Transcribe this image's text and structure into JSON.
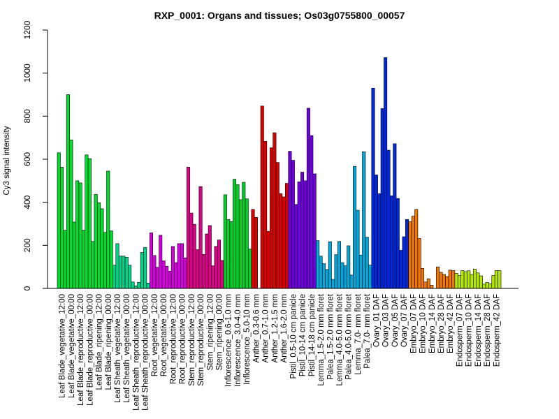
{
  "chart_data": {
    "type": "bar",
    "title": "RXP_0001: Organs and tissues; Os03g0755800_00057",
    "xlabel": "",
    "ylabel": "Cy3 signal intensity",
    "ylim": [
      0,
      1200
    ],
    "yticks": [
      0,
      200,
      400,
      600,
      800,
      1000,
      1200
    ],
    "grid": false,
    "legend": "none",
    "groups": [
      {
        "label": "Leaf Blade_vegetative_12:00",
        "color": "#00dd2f",
        "values": [
          630,
          563,
          270
        ]
      },
      {
        "label": "Leaf Blade_vegetative_00:00",
        "color": "#00dd2f",
        "values": [
          900,
          690,
          308
        ]
      },
      {
        "label": "Leaf Blade_reproductive_12:00",
        "color": "#00dd2f",
        "values": [
          500,
          490,
          270
        ]
      },
      {
        "label": "Leaf Blade_reproductive_00:00",
        "color": "#00dd2f",
        "values": [
          620,
          603,
          218
        ]
      },
      {
        "label": "Leaf Blade_ripening_12:00",
        "color": "#00dd2f",
        "values": [
          437,
          398,
          370
        ]
      },
      {
        "label": "Leaf Blade_ripening_00:00",
        "color": "#00dd2f",
        "values": [
          260,
          545,
          267
        ]
      },
      {
        "label": "Leaf Sheath_vegetative_12:00",
        "color": "#00d38c",
        "values": [
          108,
          208,
          150
        ]
      },
      {
        "label": "Leaf Sheath_vegetative_00:00",
        "color": "#00d38c",
        "values": [
          150,
          145,
          108
        ]
      },
      {
        "label": "Leaf Sheath_reproductive_12:00",
        "color": "#00d38c",
        "values": [
          30,
          12,
          28
        ]
      },
      {
        "label": "Leaf Sheath_reproductive_00:00",
        "color": "#00d38c",
        "values": [
          167,
          190,
          25
        ]
      },
      {
        "label": "Root_vegetative_12:00",
        "color": "#d600e0",
        "values": [
          258,
          153,
          98
        ]
      },
      {
        "label": "Root_vegetative_00:00",
        "color": "#d600e0",
        "values": [
          247,
          128,
          103
        ]
      },
      {
        "label": "Root_reproductive_12:00",
        "color": "#d600e0",
        "values": [
          80,
          195,
          120
        ]
      },
      {
        "label": "Root_reproductive_00:00",
        "color": "#d600e0",
        "values": [
          208,
          208,
          142
        ]
      },
      {
        "label": "Stem_reproductive_12:00",
        "color": "#de0088",
        "values": [
          563,
          350,
          298
        ]
      },
      {
        "label": "Stem_reproductive_00:00",
        "color": "#de0088",
        "values": [
          180,
          473,
          158
        ]
      },
      {
        "label": "Stem_ripening_12:00",
        "color": "#de0088",
        "values": [
          253,
          292,
          105
        ]
      },
      {
        "label": "Stem_ripening_00:00",
        "color": "#de0088",
        "values": [
          195,
          225,
          130
        ]
      },
      {
        "label": "Inflorescence_0.6-1.0 mm",
        "color": "#00d22a",
        "values": [
          435,
          320,
          310
        ]
      },
      {
        "label": "Inflorescence_3.0-4.0 mm",
        "color": "#00d22a",
        "values": [
          507,
          482,
          412
        ]
      },
      {
        "label": "Inflorescence_5.0-10 mm",
        "color": "#00d22a",
        "values": [
          493,
          416,
          183
        ]
      },
      {
        "label": "Anther_0.3-0.6 mm",
        "color": "#dc0000",
        "values": [
          367,
          330
        ]
      },
      {
        "label": "Anther_0.7-1.0 mm",
        "color": "#dc0000",
        "values": [
          847,
          683,
          265
        ]
      },
      {
        "label": "Anther_1.2-1.5 mm",
        "color": "#dc0000",
        "values": [
          653,
          723,
          585
        ]
      },
      {
        "label": "Anther_1.6-2.0 mm",
        "color": "#dc0000",
        "values": [
          440,
          425,
          488
        ]
      },
      {
        "label": "Pistil_0.5-10 cm panicle",
        "color": "#7000e0",
        "values": [
          637,
          595,
          390
        ]
      },
      {
        "label": "Pistil_10-14 cm panicle",
        "color": "#7000e0",
        "values": [
          495,
          540,
          500
        ]
      },
      {
        "label": "Pistil_14-18 cm panicle",
        "color": "#7000e0",
        "values": [
          837,
          710,
          532
        ]
      },
      {
        "label": "Lemma_1.5-2.0 mm floret",
        "color": "#00a8dc",
        "values": [
          222,
          150,
          115
        ]
      },
      {
        "label": "Palea_1.5-2.0 mm floret",
        "color": "#00a8dc",
        "values": [
          88,
          217,
          42
        ]
      },
      {
        "label": "Lemma_4.0-5.0 mm floret",
        "color": "#00a8dc",
        "values": [
          157,
          218,
          120
        ]
      },
      {
        "label": "Palea_4.0-5.0 mm floret",
        "color": "#00a8dc",
        "values": [
          105,
          198,
          62
        ]
      },
      {
        "label": "Lemma_7.0- mm floret",
        "color": "#00a8dc",
        "values": [
          567,
          363,
          155
        ]
      },
      {
        "label": "Palea_7.0- mm floret",
        "color": "#00a8dc",
        "values": [
          635,
          238,
          108
        ]
      },
      {
        "label": "Ovary_01 DAF",
        "color": "#0028dc",
        "values": [
          930,
          527,
          440
        ]
      },
      {
        "label": "Ovary_03 DAF",
        "color": "#0028dc",
        "values": [
          835,
          1072,
          642
        ]
      },
      {
        "label": "Ovary_05 DAF",
        "color": "#0028dc",
        "values": [
          430,
          672,
          418
        ]
      },
      {
        "label": "Ovary_07 DAF",
        "color": "#0028dc",
        "values": [
          177,
          240,
          320
        ]
      },
      {
        "label": "Embryo_07 DAF",
        "color": "#f07800",
        "values": [
          310,
          335,
          367
        ]
      },
      {
        "label": "Embryo_10 DAF",
        "color": "#f07800",
        "values": [
          232,
          93,
          30
        ]
      },
      {
        "label": "Embryo_14 DAF",
        "color": "#f07800",
        "values": [
          45,
          15
        ]
      },
      {
        "label": "Embryo_28 DAF",
        "color": "#f07800",
        "values": [
          100,
          75,
          65
        ]
      },
      {
        "label": "Embryo_42 DAF",
        "color": "#f07800",
        "values": [
          55,
          85,
          83
        ]
      },
      {
        "label": "Endosperm_07 DAF",
        "color": "#b4e600",
        "values": [
          70,
          60,
          83
        ]
      },
      {
        "label": "Endosperm_10 DAF",
        "color": "#b4e600",
        "values": [
          78,
          82,
          65
        ]
      },
      {
        "label": "Endosperm_14 DAF",
        "color": "#b4e600",
        "values": [
          90,
          72,
          58
        ]
      },
      {
        "label": "Endosperm_28 DAF",
        "color": "#b4e600",
        "values": [
          20,
          28,
          22
        ]
      },
      {
        "label": "Endosperm_42 DAF",
        "color": "#b4e600",
        "values": [
          60,
          83,
          83
        ]
      }
    ]
  }
}
